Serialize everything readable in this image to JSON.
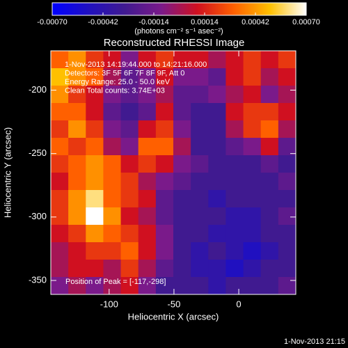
{
  "chart_data": {
    "type": "image",
    "title": "Reconstructed RHESSI Image",
    "xlabel": "Heliocentric X (arcsec)",
    "ylabel": "Heliocentric Y (arcsec)",
    "annotations": [
      "1-Nov-2013 14:19:44.000 to 14:21:16.000",
      "Detectors: 3F 5F 6F 7F 8F 9F, Att 0",
      "Energy Range: 25.0 - 50.0 keV",
      "Clean     Total counts: 3.74E+03"
    ],
    "peak_label": "Position of Peak = [-117,-298]",
    "timestamp": "1-Nov-2013 21:15",
    "colorbar_label": "(photons cm⁻² s⁻¹ asec⁻²)",
    "clim": [
      -0.0007,
      0.0007
    ],
    "cticks": [
      {
        "value": -0.0007,
        "label": "-0.00070"
      },
      {
        "value": -0.00042,
        "label": "-0.00042"
      },
      {
        "value": -0.00014,
        "label": "-0.00014"
      },
      {
        "value": 0.00014,
        "label": "0.00014"
      },
      {
        "value": 0.00042,
        "label": "0.00042"
      },
      {
        "value": 0.0007,
        "label": "0.00070"
      }
    ],
    "colormap": [
      "#0000ff",
      "#2010c0",
      "#401a90",
      "#7a1a8a",
      "#d01020",
      "#ff6000",
      "#ffc000",
      "#ffffff"
    ],
    "xlim": [
      -145,
      44
    ],
    "xticks": [
      -100,
      -50,
      0
    ],
    "ylim": [
      -361,
      -169
    ],
    "yticks": [
      -350,
      -300,
      -250,
      -200
    ],
    "z": [
      [
        0.0003,
        0.0004,
        0.0002,
        0.0001,
        -0.0001,
        0.0001,
        0.0002,
        0.0001,
        0.0001,
        0,
        0.0001,
        0.0002,
        0.0001,
        0.0002
      ],
      [
        0.0005,
        0.0004,
        0.0003,
        0,
        -0.0002,
        -0.0001,
        0.0001,
        -0.0001,
        -0.0001,
        -0.0002,
        0.0001,
        0.0002,
        0,
        0.0001
      ],
      [
        0.0004,
        0.0002,
        0.0001,
        -0.0001,
        -0.0002,
        -0.0001,
        0,
        -0.0002,
        -0.0002,
        -0.0001,
        0,
        0.0001,
        -0.0001,
        0
      ],
      [
        0.0003,
        0.0003,
        0.0001,
        -0.0002,
        -0.0003,
        -0.0002,
        0.0001,
        -0.0002,
        -0.0003,
        -0.0003,
        0.0001,
        0.0002,
        0.0002,
        0.0001
      ],
      [
        0.0002,
        0.0004,
        0.0002,
        -0.0001,
        -0.0002,
        0.0001,
        0.0002,
        -0.0001,
        -0.0003,
        -0.0003,
        0,
        0.0002,
        0.0003,
        0
      ],
      [
        0.0003,
        0.0002,
        0.0003,
        0,
        -0.0001,
        0.0003,
        0.0003,
        0,
        -0.0003,
        -0.0003,
        -0.0002,
        -0.0001,
        0.0001,
        -0.0002
      ],
      [
        0.0002,
        0.0003,
        0.0004,
        0.0003,
        0.0001,
        0.0002,
        0.0001,
        -0.0001,
        -0.0002,
        -0.0003,
        -0.0003,
        -0.0003,
        -0.0002,
        -0.0003
      ],
      [
        0.0001,
        0.0003,
        0.0004,
        0.0003,
        0.0002,
        0,
        -0.0001,
        -0.0002,
        -0.0003,
        -0.0003,
        -0.0003,
        -0.0003,
        -0.0003,
        -0.0002
      ],
      [
        0.0002,
        0.0004,
        0.0006,
        0.0003,
        0.0002,
        0.0001,
        -0.0002,
        -0.0003,
        -0.0003,
        -0.0004,
        -0.0003,
        -0.0003,
        -0.0003,
        -0.0003
      ],
      [
        0.0002,
        0.0004,
        0.0007,
        0.0004,
        0.0001,
        0,
        -0.0002,
        -0.0003,
        -0.0003,
        -0.0003,
        -0.0004,
        -0.0004,
        -0.0003,
        -0.0002
      ],
      [
        0.0001,
        0.0002,
        0.0004,
        0.0003,
        0.0002,
        0.0001,
        -0.0001,
        -0.0003,
        -0.0003,
        -0.0004,
        -0.0004,
        -0.0004,
        -0.0003,
        -0.0003
      ],
      [
        0,
        0.0001,
        0.0002,
        0.0002,
        0.0003,
        0.0001,
        -0.0001,
        -0.0003,
        -0.0004,
        -0.0003,
        -0.0004,
        -0.0005,
        -0.0004,
        -0.0003
      ],
      [
        0,
        0.0001,
        0.0001,
        0,
        0.0002,
        0,
        -0.0002,
        -0.0003,
        -0.0004,
        -0.0004,
        -0.0005,
        -0.0004,
        -0.0003,
        -0.0003
      ],
      [
        -0.0001,
        0,
        -0.0001,
        0,
        0.0001,
        -0.0001,
        -0.0003,
        -0.0003,
        -0.0003,
        -0.0004,
        -0.0003,
        -0.0003,
        -0.0003,
        -0.0002
      ]
    ]
  }
}
